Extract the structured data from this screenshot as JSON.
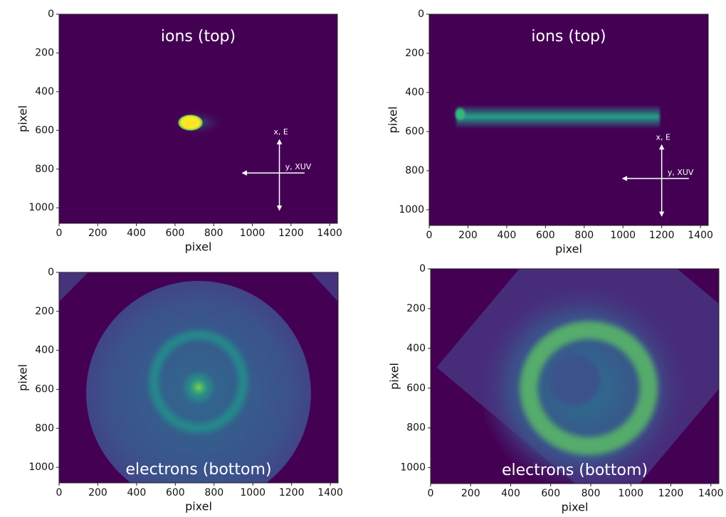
{
  "chart_data": [
    {
      "type": "image",
      "title": "ions (top)",
      "xlabel": "pixel",
      "ylabel": "pixel",
      "xlim": [
        0,
        1440
      ],
      "ylim": [
        1080,
        0
      ],
      "xticks": [
        0,
        200,
        400,
        600,
        800,
        1000,
        1200,
        1400
      ],
      "yticks": [
        0,
        200,
        400,
        600,
        800,
        1000
      ],
      "arrow_labels": [
        "x, E",
        "y, XUV"
      ]
    },
    {
      "type": "image",
      "title": "ions (top)",
      "xlabel": "pixel",
      "ylabel": "pixel",
      "xlim": [
        0,
        1440
      ],
      "ylim": [
        1080,
        0
      ],
      "xticks": [
        0,
        200,
        400,
        600,
        800,
        1000,
        1200,
        1400
      ],
      "yticks": [
        0,
        200,
        400,
        600,
        800,
        1000
      ],
      "arrow_labels": [
        "x, E",
        "y, XUV"
      ]
    },
    {
      "type": "image",
      "title": "electrons (bottom)",
      "xlabel": "pixel",
      "ylabel": "pixel",
      "xlim": [
        0,
        1440
      ],
      "ylim": [
        1080,
        0
      ],
      "xticks": [
        0,
        200,
        400,
        600,
        800,
        1000,
        1200,
        1400
      ],
      "yticks": [
        0,
        200,
        400,
        600,
        800,
        1000
      ]
    },
    {
      "type": "image",
      "title": "electrons (bottom)",
      "xlabel": "pixel",
      "ylabel": "pixel",
      "xlim": [
        0,
        1440
      ],
      "ylim": [
        1080,
        0
      ],
      "xticks": [
        0,
        200,
        400,
        600,
        800,
        1000,
        1200,
        1400
      ],
      "yticks": [
        0,
        200,
        400,
        600,
        800,
        1000
      ]
    }
  ]
}
